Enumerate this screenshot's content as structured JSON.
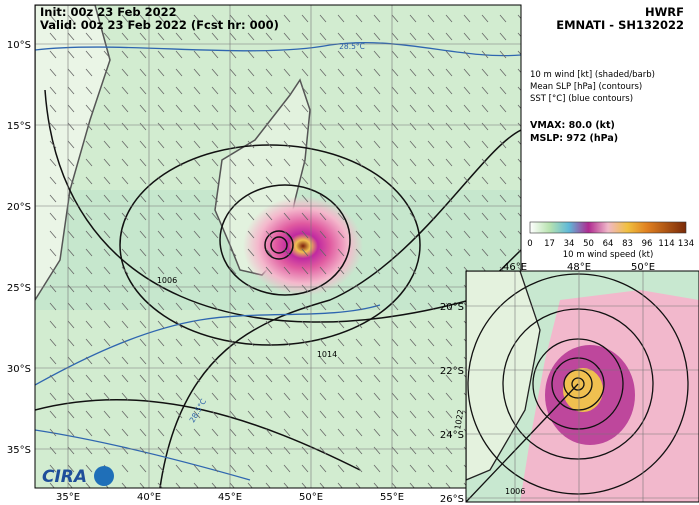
{
  "header": {
    "init": "Init:  00z 23 Feb 2022",
    "valid": "Valid: 00z 23 Feb 2022 (Fcst hr: 000)",
    "model": "HWRF",
    "storm": "EMNATI - SH132022"
  },
  "legend": {
    "lines": [
      "10 m wind [kt] (shaded/barb)",
      "Mean SLP [hPa] (contours)",
      "SST [°C] (blue contours)"
    ],
    "vmax": "VMAX:  80.0 (kt)",
    "mslp": "MSLP:  972 (hPa)"
  },
  "colorbar": {
    "ticks": [
      "0",
      "17",
      "34",
      "50",
      "64",
      "83",
      "96",
      "114",
      "134"
    ],
    "label": "10 m wind speed (kt)"
  },
  "main_map": {
    "lat_labels": [
      "10°S",
      "15°S",
      "20°S",
      "25°S",
      "30°S",
      "35°S"
    ],
    "lon_labels": [
      "35°E",
      "40°E",
      "45°E",
      "50°E",
      "55°E"
    ],
    "contour_labels": [
      "1006",
      "1014"
    ],
    "sst_labels": [
      "28.5°C",
      "28.5°C"
    ]
  },
  "inset_map": {
    "lat_labels": [
      "20°S",
      "22°S",
      "24°S",
      "26°S"
    ],
    "lon_labels": [
      "46°E",
      "48°E",
      "50°E"
    ],
    "contour_labels": [
      "1022",
      "1006"
    ]
  },
  "logo": "CIRA"
}
